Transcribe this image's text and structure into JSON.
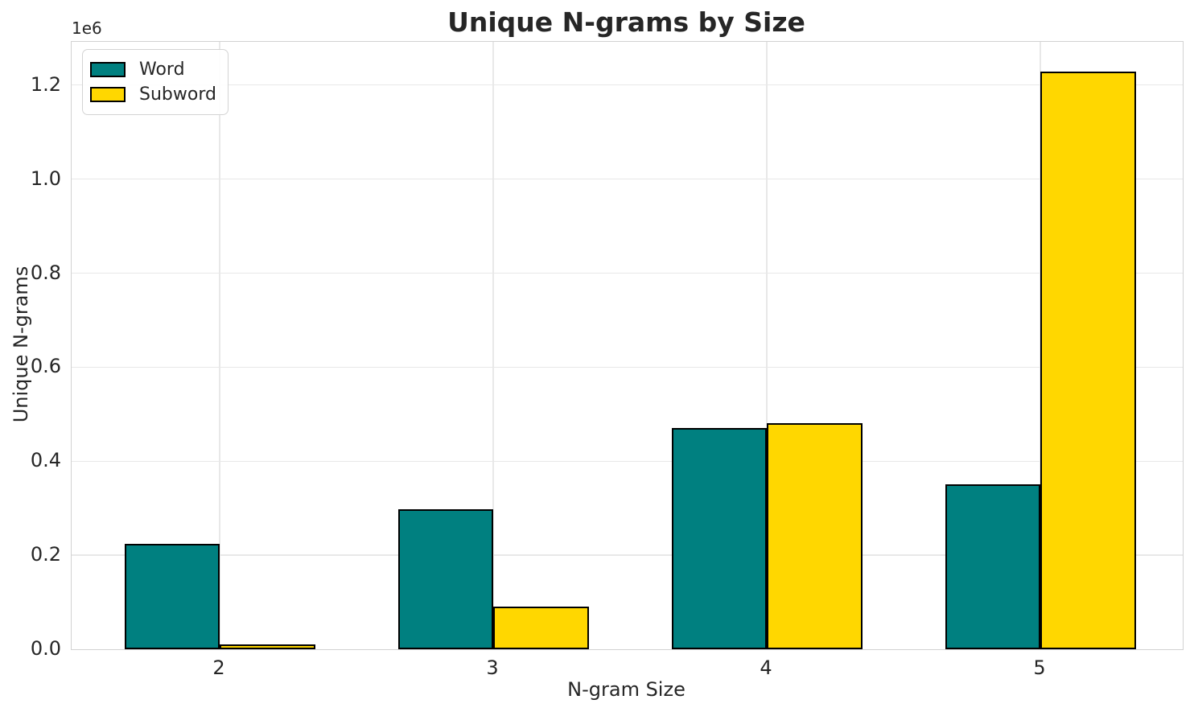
{
  "title": "Unique N-grams by Size",
  "axes": {
    "x_label": "N-gram Size",
    "y_label": "Unique N-grams",
    "offset_text": "1e6"
  },
  "legend": {
    "items": [
      {
        "label": "Word",
        "color": "#008080"
      },
      {
        "label": "Subword",
        "color": "#FFD700"
      }
    ]
  },
  "colors": {
    "word": "#008080",
    "subword": "#FFD700",
    "bar_edge": "#000000",
    "grid": "#e8e8e8",
    "spine": "#d2d2d2",
    "text": "#262626",
    "background": "#ffffff"
  },
  "chart_data": {
    "type": "bar",
    "title": "Unique N-grams by Size",
    "xlabel": "N-gram Size",
    "ylabel": "Unique N-grams",
    "categories": [
      "2",
      "3",
      "4",
      "5"
    ],
    "series": [
      {
        "name": "Word",
        "color": "#008080",
        "values": [
          223500,
          297000,
          471000,
          350000
        ]
      },
      {
        "name": "Subword",
        "color": "#FFD700",
        "values": [
          11000,
          90000,
          481000,
          1229000
        ]
      }
    ],
    "ylim": [
      0,
      1292000
    ],
    "yticks": [
      0,
      200000,
      400000,
      600000,
      800000,
      1000000,
      1200000
    ],
    "ytick_labels": [
      "0.0",
      "0.2",
      "0.4",
      "0.6",
      "0.8",
      "1.0",
      "1.2"
    ],
    "y_offset_label": "1e6",
    "grid": true,
    "legend_position": "upper left",
    "bar_edge_color": "#000000"
  }
}
